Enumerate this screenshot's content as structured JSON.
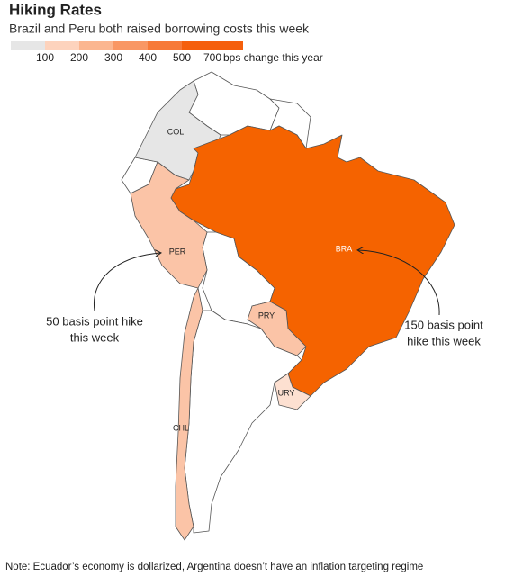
{
  "title": "Hiking Rates",
  "subtitle": "Brazil and Peru both raised borrowing costs this week",
  "legend": {
    "colors": [
      "#e6e6e6",
      "#fdd3bd",
      "#fbb690",
      "#f99764",
      "#f77a38",
      "#f55f0c"
    ],
    "ticks": [
      100,
      200,
      300,
      400,
      500,
      700
    ],
    "unit": "bps change this year"
  },
  "regions": [
    {
      "label": "COL",
      "color": "#e6e6e6"
    },
    {
      "label": "PER",
      "color": "#fbc4a7"
    },
    {
      "label": "BRA",
      "color": "#f56300"
    },
    {
      "label": "PRY",
      "color": "#fbc4a7"
    },
    {
      "label": "URY",
      "color": "#fde0d1"
    },
    {
      "label": "CHL",
      "color": "#fbc4a7"
    }
  ],
  "annotations": [
    {
      "lines": [
        "50 basis point hike",
        "this week"
      ]
    },
    {
      "lines": [
        "150 basis point",
        "hike this week"
      ]
    }
  ],
  "note": "Note: Ecuador’s economy is dollarized, Argentina doesn’t have an inflation targeting regime"
}
